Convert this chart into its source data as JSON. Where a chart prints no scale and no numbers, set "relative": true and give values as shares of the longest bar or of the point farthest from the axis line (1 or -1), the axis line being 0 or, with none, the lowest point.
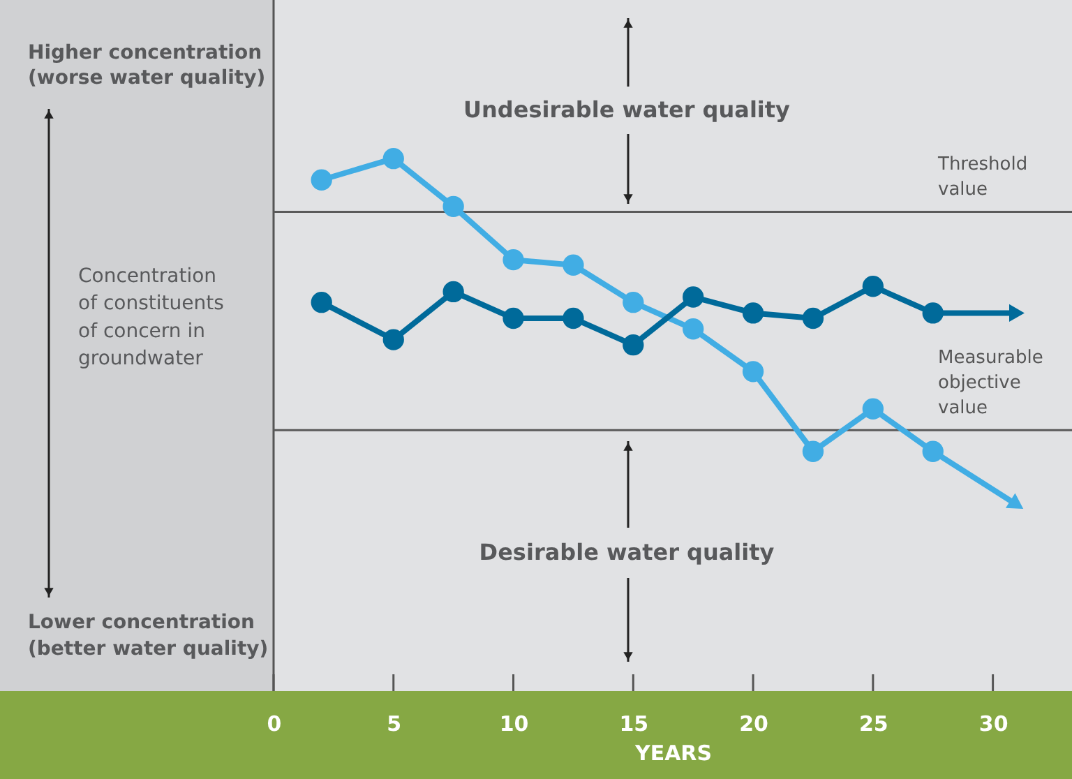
{
  "chart_data": {
    "type": "line",
    "relative": true,
    "xlabel": "YEARS",
    "xlim": [
      0,
      33.3
    ],
    "xticks": [
      0,
      5,
      10,
      15,
      20,
      25,
      30
    ],
    "x": [
      2,
      5,
      7.5,
      10,
      12.5,
      15,
      17.5,
      20,
      22.5,
      25,
      27.5,
      31
    ],
    "series": [
      {
        "color": "#41ade4",
        "values": [
          0.96,
          1,
          0.91,
          0.81,
          0.8,
          0.73,
          0.68,
          0.6,
          0.45,
          0.53,
          0.45,
          0.35
        ]
      },
      {
        "color": "#006a9a",
        "values": [
          0.73,
          0.66,
          0.75,
          0.7,
          0.7,
          0.65,
          0.74,
          0.71,
          0.7,
          0.76,
          0.71,
          0.71
        ]
      }
    ],
    "ref_lines": [
      {
        "axis": "y",
        "value": 0.9,
        "label": "Threshold value",
        "color": "#5a5a5a"
      },
      {
        "axis": "y",
        "value": 0.49,
        "label": "Measurable objective value",
        "color": "#5a5a5a"
      }
    ],
    "annotations": [
      "Higher concentration\n(worse water quality)",
      "Concentration\nof constituents\nof concern in\ngroundwater",
      "Lower concentration\n(better water quality)",
      "Undesirable water quality",
      "Desirable water quality"
    ],
    "marker": "circle",
    "line_style": "solid",
    "grid": false
  }
}
